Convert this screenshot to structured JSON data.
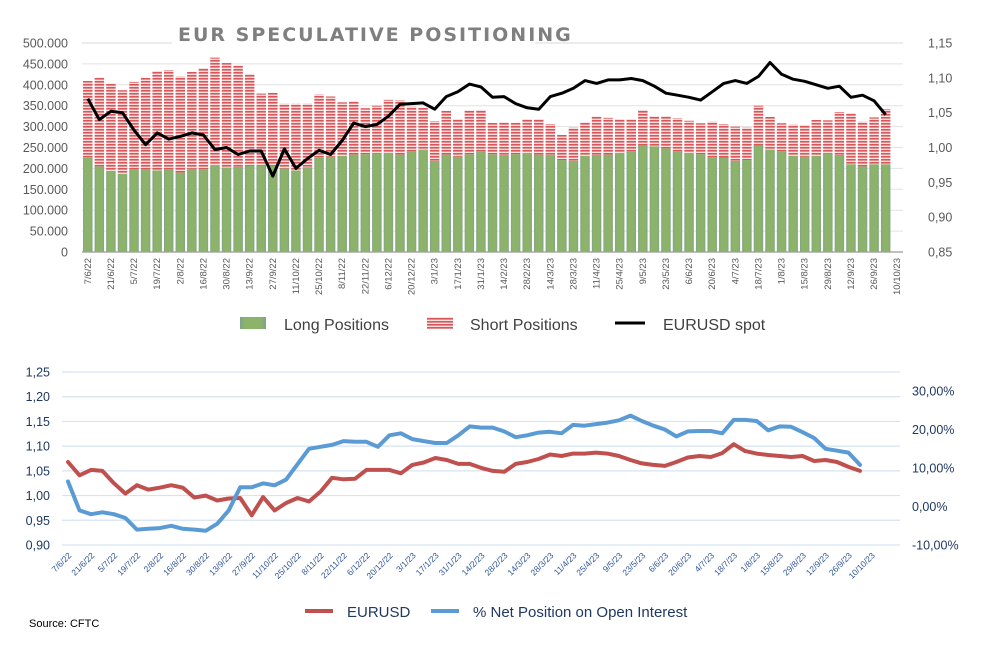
{
  "chart_data": [
    {
      "type": "bar",
      "subtype": "stacked-bar-with-line",
      "title": "EUR SPECULATIVE POSITIONING",
      "xlabel": "",
      "ylabel": "",
      "y_left": {
        "ylim": [
          0,
          500000
        ],
        "ticks": [
          "0",
          "50.000",
          "100.000",
          "150.000",
          "200.000",
          "250.000",
          "300.000",
          "350.000",
          "400.000",
          "450.000",
          "500.000"
        ],
        "step": 50000
      },
      "y_right": {
        "ylim": [
          0.85,
          1.15
        ],
        "ticks": [
          "0,85",
          "0,90",
          "0,95",
          "1,00",
          "1,05",
          "1,10",
          "1,15"
        ],
        "step": 0.05
      },
      "grid": true,
      "legend_position": "bottom",
      "x_tick_labels": [
        "7/6/22",
        "21/6/22",
        "5/7/22",
        "19/7/22",
        "2/8/22",
        "16/8/22",
        "30/8/22",
        "13/9/22",
        "27/9/22",
        "11/10/22",
        "25/10/22",
        "8/11/22",
        "22/11/22",
        "6/12/22",
        "20/12/22",
        "3/1/23",
        "17/1/23",
        "31/1/23",
        "14/2/23",
        "28/2/23",
        "14/3/23",
        "28/3/23",
        "11/4/23",
        "25/4/23",
        "9/5/23",
        "23/5/23",
        "6/6/23",
        "20/6/23",
        "4/7/23",
        "18/7/23",
        "1/8/23",
        "15/8/23",
        "29/8/23",
        "12/9/23",
        "26/9/23",
        "10/10/23"
      ],
      "categories": [
        "7/6/22",
        "14/6/22",
        "21/6/22",
        "28/6/22",
        "5/7/22",
        "12/7/22",
        "19/7/22",
        "26/7/22",
        "2/8/22",
        "9/8/22",
        "16/8/22",
        "23/8/22",
        "30/8/22",
        "6/9/22",
        "13/9/22",
        "20/9/22",
        "27/9/22",
        "4/10/22",
        "11/10/22",
        "18/10/22",
        "25/10/22",
        "1/11/22",
        "8/11/22",
        "15/11/22",
        "22/11/22",
        "29/11/22",
        "6/12/22",
        "13/12/22",
        "20/12/22",
        "27/12/22",
        "3/1/23",
        "10/1/23",
        "17/1/23",
        "24/1/23",
        "31/1/23",
        "7/2/23",
        "14/2/23",
        "21/2/23",
        "28/2/23",
        "7/3/23",
        "14/3/23",
        "21/3/23",
        "28/3/23",
        "4/4/23",
        "11/4/23",
        "18/4/23",
        "25/4/23",
        "2/5/23",
        "9/5/23",
        "16/5/23",
        "23/5/23",
        "30/5/23",
        "6/6/23",
        "13/6/23",
        "20/6/23",
        "27/6/23",
        "4/7/23",
        "11/7/23",
        "18/7/23",
        "25/7/23",
        "1/8/23",
        "8/8/23",
        "15/8/23",
        "22/8/23",
        "29/8/23",
        "5/9/23",
        "12/9/23",
        "19/9/23",
        "26/9/23",
        "3/10/23",
        "10/10/23"
      ],
      "series": [
        {
          "name": "Long Positions",
          "axis": "left",
          "kind": "bar",
          "color": "#8db36a",
          "values": [
            225000,
            205000,
            193000,
            187000,
            197000,
            197000,
            195000,
            197000,
            190000,
            199000,
            198000,
            208000,
            202000,
            204000,
            206000,
            207000,
            206000,
            200000,
            195000,
            203000,
            225000,
            228000,
            230000,
            233000,
            234000,
            235000,
            236000,
            233000,
            240000,
            245000,
            218000,
            233000,
            228000,
            234000,
            240000,
            234000,
            232000,
            234000,
            236000,
            233000,
            232000,
            220000,
            218000,
            230000,
            232000,
            233000,
            236000,
            240000,
            255000,
            253000,
            248000,
            240000,
            236000,
            234000,
            227000,
            226000,
            218000,
            220000,
            255000,
            245000,
            240000,
            230000,
            228000,
            230000,
            235000,
            232000,
            210000,
            205000,
            210000,
            210000,
            null
          ]
        },
        {
          "name": "Short Positions",
          "axis": "left",
          "kind": "bar",
          "color": "#d9575a",
          "values": [
            184000,
            212000,
            210000,
            200000,
            210000,
            220000,
            238000,
            238000,
            230000,
            232000,
            242000,
            257000,
            250000,
            242000,
            220000,
            172000,
            175000,
            155000,
            160000,
            152000,
            152000,
            144000,
            128000,
            128000,
            110000,
            115000,
            128000,
            130000,
            108000,
            100000,
            95000,
            105000,
            90000,
            105000,
            100000,
            75000,
            78000,
            75000,
            82000,
            85000,
            74000,
            60000,
            80000,
            80000,
            92000,
            88000,
            82000,
            78000,
            85000,
            72000,
            77000,
            80000,
            78000,
            74000,
            85000,
            80000,
            82000,
            78000,
            95000,
            78000,
            68000,
            75000,
            76000,
            86000,
            80000,
            103000,
            122000,
            107000,
            112000,
            132000,
            null
          ]
        },
        {
          "name": "EURUSD spot",
          "axis": "right",
          "kind": "line",
          "color": "#000000",
          "values": [
            1.07,
            1.04,
            1.052,
            1.05,
            1.025,
            1.004,
            1.021,
            1.012,
            1.016,
            1.021,
            1.018,
            0.997,
            1.0,
            0.99,
            0.995,
            0.995,
            0.959,
            0.998,
            0.97,
            0.984,
            0.996,
            0.99,
            1.01,
            1.035,
            1.03,
            1.033,
            1.045,
            1.062,
            1.063,
            1.064,
            1.055,
            1.073,
            1.08,
            1.091,
            1.087,
            1.072,
            1.073,
            1.063,
            1.057,
            1.055,
            1.073,
            1.078,
            1.085,
            1.096,
            1.092,
            1.097,
            1.097,
            1.099,
            1.096,
            1.088,
            1.078,
            1.075,
            1.072,
            1.068,
            1.08,
            1.092,
            1.096,
            1.092,
            1.102,
            1.122,
            1.105,
            1.098,
            1.095,
            1.09,
            1.085,
            1.088,
            1.072,
            1.075,
            1.067,
            1.047,
            null
          ]
        }
      ],
      "legend": [
        "Long Positions",
        "Short Positions",
        "EURUSD spot"
      ]
    },
    {
      "type": "line",
      "title": "",
      "xlabel": "",
      "ylabel": "",
      "y_left": {
        "ylim": [
          0.9,
          1.25
        ],
        "ticks": [
          "0,90",
          "0,95",
          "1,00",
          "1,05",
          "1,10",
          "1,15",
          "1,20",
          "1,25"
        ],
        "step": 0.05
      },
      "y_right": {
        "ylim": [
          -0.1,
          0.3
        ],
        "ticks": [
          "-10,00%",
          "0,00%",
          "10,00%",
          "20,00%",
          "30,00%"
        ],
        "step": 0.1
      },
      "grid": true,
      "legend_position": "bottom",
      "x_tick_labels": [
        "7/6/22",
        "21/6/22",
        "5/7/22",
        "19/7/22",
        "2/8/22",
        "16/8/22",
        "30/8/22",
        "13/9/22",
        "27/9/22",
        "11/10/22",
        "25/10/22",
        "8/11/22",
        "22/11/22",
        "6/12/22",
        "20/12/22",
        "3/1/23",
        "17/1/23",
        "31/1/23",
        "14/2/23",
        "28/2/23",
        "14/3/23",
        "28/3/23",
        "11/4/23",
        "25/4/23",
        "9/5/23",
        "23/5/23",
        "6/6/23",
        "20/6/23",
        "4/7/23",
        "18/7/23",
        "1/8/23",
        "15/8/23",
        "29/8/23",
        "12/9/23",
        "26/9/23",
        "10/10/23"
      ],
      "categories": [
        "7/6/22",
        "14/6/22",
        "21/6/22",
        "28/6/22",
        "5/7/22",
        "12/7/22",
        "19/7/22",
        "26/7/22",
        "2/8/22",
        "9/8/22",
        "16/8/22",
        "23/8/22",
        "30/8/22",
        "6/9/22",
        "13/9/22",
        "20/9/22",
        "27/9/22",
        "4/10/22",
        "11/10/22",
        "18/10/22",
        "25/10/22",
        "1/11/22",
        "8/11/22",
        "15/11/22",
        "22/11/22",
        "29/11/22",
        "6/12/22",
        "13/12/22",
        "20/12/22",
        "27/12/22",
        "3/1/23",
        "10/1/23",
        "17/1/23",
        "24/1/23",
        "31/1/23",
        "7/2/23",
        "14/2/23",
        "21/2/23",
        "28/2/23",
        "7/3/23",
        "14/3/23",
        "21/3/23",
        "28/3/23",
        "4/4/23",
        "11/4/23",
        "18/4/23",
        "25/4/23",
        "2/5/23",
        "9/5/23",
        "16/5/23",
        "23/5/23",
        "30/5/23",
        "6/6/23",
        "13/6/23",
        "20/6/23",
        "27/6/23",
        "4/7/23",
        "11/7/23",
        "18/7/23",
        "25/7/23",
        "1/8/23",
        "8/8/23",
        "15/8/23",
        "22/8/23",
        "29/8/23",
        "5/9/23",
        "12/9/23",
        "19/9/23",
        "26/9/23",
        "3/10/23",
        "10/10/23"
      ],
      "series": [
        {
          "name": "EURUSD",
          "axis": "left",
          "color": "#c0504d",
          "values": [
            1.068,
            1.041,
            1.052,
            1.05,
            1.025,
            1.004,
            1.021,
            1.012,
            1.016,
            1.021,
            1.016,
            0.996,
            1.0,
            0.99,
            0.994,
            0.995,
            0.96,
            0.997,
            0.97,
            0.985,
            0.995,
            0.988,
            1.008,
            1.036,
            1.033,
            1.034,
            1.052,
            1.052,
            1.052,
            1.045,
            1.062,
            1.067,
            1.076,
            1.072,
            1.064,
            1.064,
            1.056,
            1.05,
            1.048,
            1.064,
            1.068,
            1.074,
            1.083,
            1.08,
            1.085,
            1.085,
            1.087,
            1.085,
            1.08,
            1.072,
            1.065,
            1.062,
            1.06,
            1.068,
            1.077,
            1.08,
            1.078,
            1.086,
            1.104,
            1.09,
            1.085,
            1.082,
            1.08,
            1.078,
            1.08,
            1.07,
            1.072,
            1.068,
            1.058,
            1.05,
            null
          ]
        },
        {
          "name": "% Net Position on Open Interest",
          "axis": "right",
          "color": "#5b9bd5",
          "values": [
            0.065,
            -0.01,
            -0.02,
            -0.015,
            -0.02,
            -0.03,
            -0.06,
            -0.058,
            -0.056,
            -0.05,
            -0.058,
            -0.06,
            -0.063,
            -0.045,
            -0.01,
            0.05,
            0.05,
            0.06,
            0.055,
            0.07,
            0.11,
            0.15,
            0.155,
            0.16,
            0.17,
            0.168,
            0.168,
            0.155,
            0.185,
            0.19,
            0.175,
            0.17,
            0.165,
            0.165,
            0.185,
            0.208,
            0.205,
            0.205,
            0.195,
            0.18,
            0.185,
            0.192,
            0.194,
            0.19,
            0.212,
            0.21,
            0.214,
            0.218,
            0.224,
            0.236,
            0.222,
            0.21,
            0.2,
            0.182,
            0.195,
            0.196,
            0.196,
            0.19,
            0.225,
            0.225,
            0.222,
            0.198,
            0.208,
            0.207,
            0.193,
            0.178,
            0.15,
            0.145,
            0.14,
            0.108,
            null
          ]
        }
      ],
      "legend": [
        "EURUSD",
        "% Net Position on Open Interest"
      ]
    }
  ],
  "source": "Source: CFTC"
}
